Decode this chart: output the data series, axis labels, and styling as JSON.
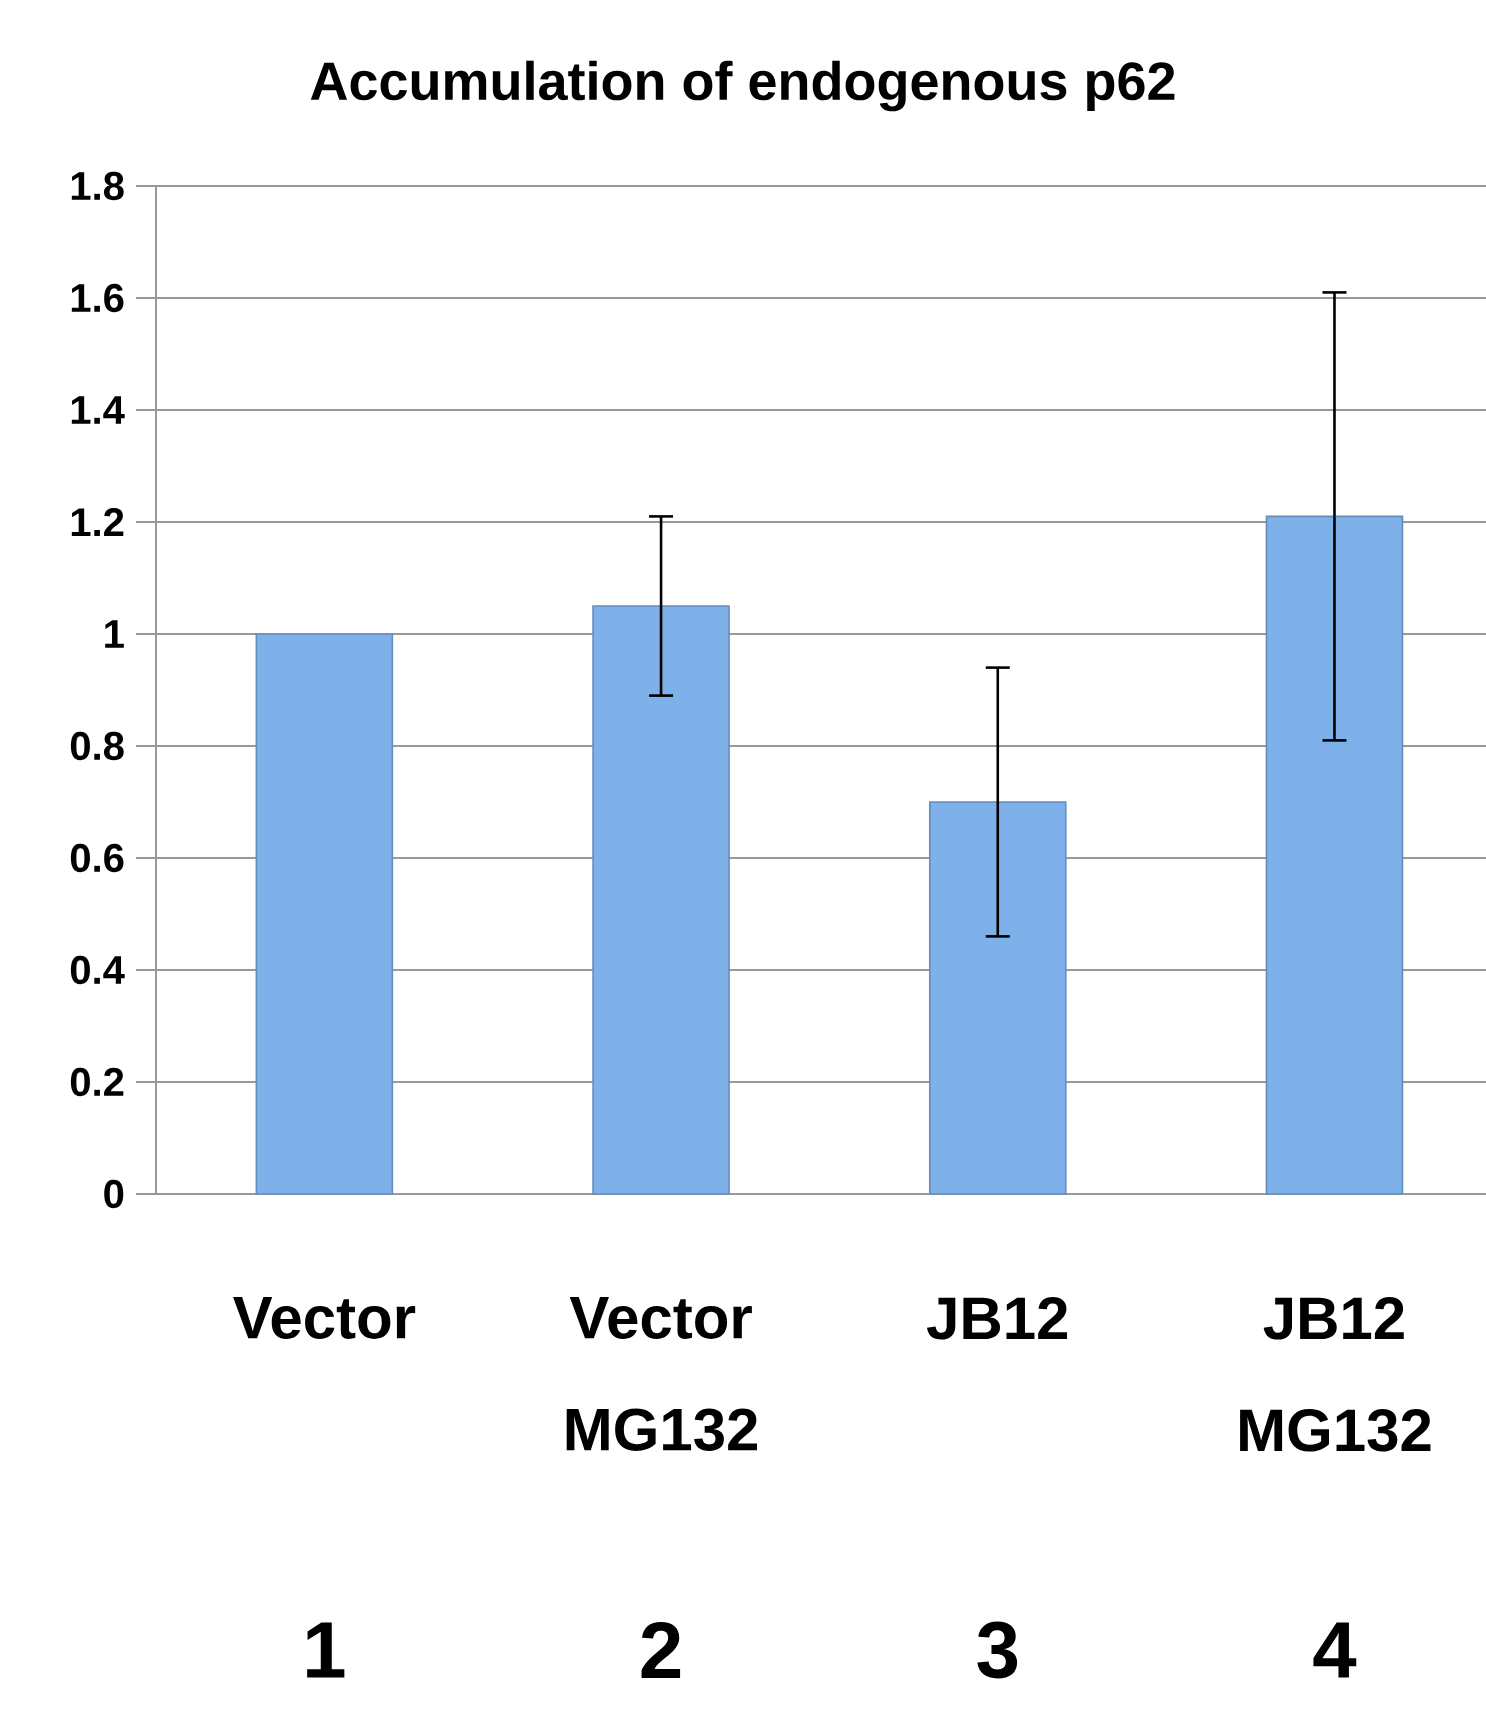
{
  "chart_data": {
    "type": "bar",
    "title": "Accumulation of endogenous p62",
    "categories": [
      "Vector",
      "Vector MG132",
      "JB12",
      "JB12 MG132"
    ],
    "values": [
      1.0,
      1.05,
      0.7,
      1.21
    ],
    "errors": [
      null,
      0.16,
      0.24,
      0.4
    ],
    "color": "#7eb0ea",
    "ylim": [
      0,
      1.8
    ],
    "yticks": [
      0,
      0.2,
      0.4,
      0.6,
      0.8,
      1,
      1.2,
      1.4,
      1.6,
      1.8
    ],
    "grid": "y",
    "annotations": [
      "1",
      "2",
      "3",
      "4"
    ]
  }
}
